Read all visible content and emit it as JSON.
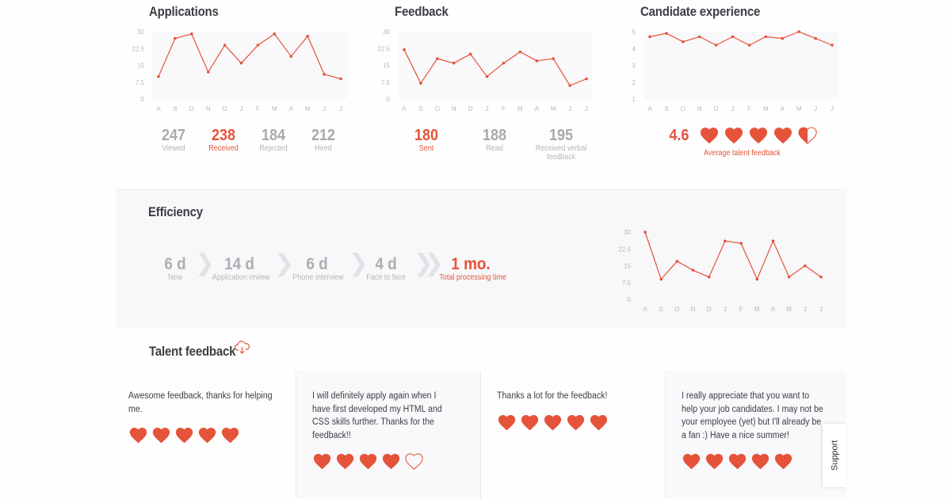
{
  "colors": {
    "accent": "#e5533a",
    "muted": "#a9a9ae",
    "panel_bg": "#f8f7f9",
    "chart_bg": "#f9f8fa"
  },
  "applications": {
    "title": "Applications",
    "stats": [
      {
        "value": "247",
        "label": "Viewed",
        "accent": false
      },
      {
        "value": "238",
        "label": "Received",
        "accent": true
      },
      {
        "value": "184",
        "label": "Rejected",
        "accent": false
      },
      {
        "value": "212",
        "label": "Hired",
        "accent": false
      }
    ]
  },
  "feedback": {
    "title": "Feedback",
    "stats": [
      {
        "value": "180",
        "label": "Sent",
        "accent": true
      },
      {
        "value": "188",
        "label": "Read",
        "accent": false
      },
      {
        "value": "195",
        "label": "Received verbal feedback",
        "accent": false
      }
    ]
  },
  "candidate_experience": {
    "title": "Candidate experience",
    "average": "4.6",
    "average_label": "Average talent feedback",
    "hearts": [
      1,
      1,
      1,
      1,
      0.5
    ]
  },
  "efficiency": {
    "title": "Efficiency",
    "steps": [
      {
        "value": "6 d",
        "label": "New"
      },
      {
        "value": "14 d",
        "label": "Application review"
      },
      {
        "value": "6 d",
        "label": "Phone interview"
      },
      {
        "value": "4 d",
        "label": "Face to face"
      }
    ],
    "total": {
      "value": "1 mo.",
      "label": "Total processing time"
    }
  },
  "talent_feedback": {
    "title": "Talent feedback",
    "icon": "cloud-download-icon",
    "cards": [
      {
        "text": "Awesome feedback, thanks for helping me.",
        "hearts": [
          1,
          1,
          1,
          1,
          1
        ]
      },
      {
        "text": "I will definitely apply again when I have first developed my HTML and CSS skills further. Thanks for the feedback!!",
        "hearts": [
          1,
          1,
          1,
          1,
          0
        ]
      },
      {
        "text": "Thanks a lot for the feedback!",
        "hearts": [
          1,
          1,
          1,
          1,
          1
        ]
      },
      {
        "text": "I really appreciate that you want to help your job candidates. I may not be your employee (yet) but I'll already be a fan :) Have a nice summer!",
        "hearts": [
          1,
          1,
          1,
          1,
          1
        ]
      }
    ]
  },
  "support": {
    "label": "Support"
  },
  "chart_data": [
    {
      "type": "line",
      "title": "Applications",
      "categories": [
        "A",
        "S",
        "O",
        "N",
        "D",
        "J",
        "F",
        "M",
        "A",
        "M",
        "J",
        "J"
      ],
      "values": [
        10,
        27,
        29,
        12,
        24,
        16,
        24,
        29,
        19,
        28,
        11,
        9
      ],
      "yticks": [
        "0",
        "7.5",
        "15",
        "22.5",
        "30"
      ],
      "ylim": [
        0,
        30
      ],
      "xlabel": "",
      "ylabel": "",
      "grid": false
    },
    {
      "type": "line",
      "title": "Feedback",
      "categories": [
        "A",
        "S",
        "O",
        "N",
        "D",
        "J",
        "F",
        "M",
        "A",
        "M",
        "J",
        "J"
      ],
      "values": [
        22,
        7,
        18,
        16,
        20,
        10,
        16,
        21,
        17,
        18,
        6,
        9
      ],
      "yticks": [
        "0",
        "7.5",
        "15",
        "22.5",
        "30"
      ],
      "ylim": [
        0,
        30
      ],
      "xlabel": "",
      "ylabel": "",
      "grid": false
    },
    {
      "type": "line",
      "title": "Candidate experience",
      "categories": [
        "A",
        "S",
        "O",
        "N",
        "D",
        "J",
        "F",
        "M",
        "A",
        "M",
        "J",
        "J"
      ],
      "values": [
        4.7,
        4.9,
        4.4,
        4.7,
        4.2,
        4.7,
        4.2,
        4.7,
        4.6,
        5.0,
        4.6,
        4.2
      ],
      "yticks": [
        "1",
        "2",
        "3",
        "4",
        "5"
      ],
      "ylim": [
        1,
        5
      ],
      "xlabel": "",
      "ylabel": "",
      "grid": false
    },
    {
      "type": "line",
      "title": "Efficiency",
      "categories": [
        "A",
        "S",
        "O",
        "N",
        "D",
        "J",
        "F",
        "M",
        "A",
        "M",
        "J",
        "J"
      ],
      "values": [
        30,
        9,
        17,
        13,
        10,
        26,
        25,
        9,
        26,
        10,
        15,
        10
      ],
      "yticks": [
        "0",
        "7.5",
        "15",
        "22.5",
        "30"
      ],
      "ylim": [
        0,
        30
      ],
      "xlabel": "",
      "ylabel": "",
      "grid": false
    }
  ]
}
